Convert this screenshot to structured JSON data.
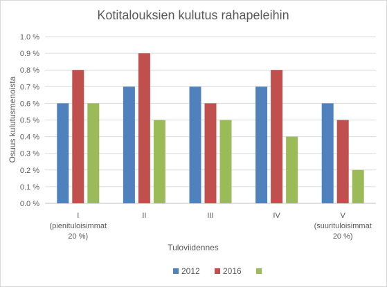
{
  "chart_data": {
    "type": "bar",
    "title": "Kotitalouksien kulutus rahapeleihin",
    "ylabel": "Osuus kulutusmenoista",
    "xlabel": "Tuloviidennes",
    "ylim": [
      0,
      1.0
    ],
    "y_ticks": [
      "0.0 %",
      "0.1 %",
      "0.2 %",
      "0.3 %",
      "0.4 %",
      "0.5 %",
      "0.6 %",
      "0.7 %",
      "0.8 %",
      "0.9 %",
      "1.0 %"
    ],
    "grid": true,
    "legend_position": "bottom",
    "categories": [
      [
        "I",
        "(pienituloisimmat",
        "20 %)"
      ],
      [
        "II"
      ],
      [
        "III"
      ],
      [
        "IV"
      ],
      [
        "V",
        "(suurituloisimmat",
        "20 %)"
      ]
    ],
    "series": [
      {
        "name": "2012",
        "color": "#4f81bd",
        "values": [
          0.6,
          0.7,
          0.7,
          0.7,
          0.6
        ]
      },
      {
        "name": "2016",
        "color": "#c0504d",
        "values": [
          0.8,
          0.9,
          0.6,
          0.8,
          0.5
        ]
      },
      {
        "name": "",
        "color": "#9bbb59",
        "values": [
          0.6,
          0.5,
          0.5,
          0.4,
          0.2
        ]
      }
    ]
  }
}
